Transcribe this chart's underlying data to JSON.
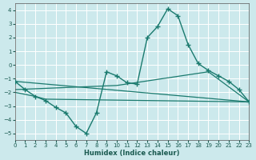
{
  "xlabel": "Humidex (Indice chaleur)",
  "bg_color": "#cce9ec",
  "grid_color": "#b0d8dc",
  "line_color": "#1a7a6e",
  "xlim": [
    0,
    23
  ],
  "ylim": [
    -5.5,
    4.5
  ],
  "yticks": [
    -5,
    -4,
    -3,
    -2,
    -1,
    0,
    1,
    2,
    3,
    4
  ],
  "xticks": [
    0,
    1,
    2,
    3,
    4,
    5,
    6,
    7,
    8,
    9,
    10,
    11,
    12,
    13,
    14,
    15,
    16,
    17,
    18,
    19,
    20,
    21,
    22,
    23
  ],
  "main_x": [
    0,
    1,
    2,
    3,
    4,
    5,
    6,
    7,
    8,
    9,
    10,
    11,
    12,
    13,
    14,
    15,
    16,
    17,
    18,
    19,
    20,
    21,
    22,
    23
  ],
  "main_y": [
    -1.2,
    -1.8,
    -2.3,
    -2.6,
    -3.1,
    -3.5,
    -4.5,
    -5.0,
    -3.5,
    -0.5,
    -0.8,
    -1.3,
    -1.4,
    2.0,
    2.8,
    4.1,
    3.6,
    1.5,
    0.1,
    -0.4,
    -0.8,
    -1.2,
    -1.8,
    -2.7
  ],
  "line2_x": [
    0,
    23
  ],
  "line2_y": [
    -1.2,
    -2.7
  ],
  "line3_x": [
    0,
    10,
    19,
    23
  ],
  "line3_y": [
    -1.8,
    -1.5,
    -0.5,
    -2.7
  ],
  "line4_x": [
    0,
    2,
    3,
    23
  ],
  "line4_y": [
    -2.0,
    -2.3,
    -2.5,
    -2.7
  ],
  "figsize": [
    3.2,
    2.0
  ],
  "dpi": 100
}
